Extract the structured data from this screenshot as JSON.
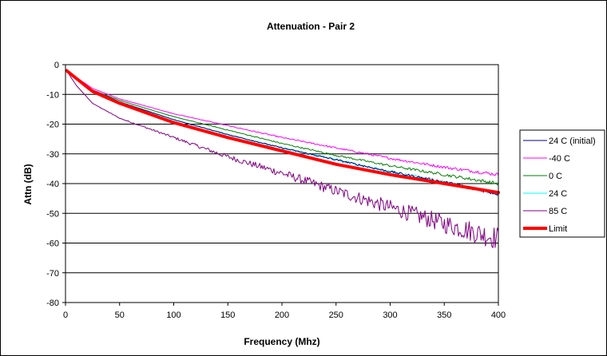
{
  "chart_data": {
    "type": "line",
    "title": "Attenuation - Pair 2",
    "xlabel": "Frequency (Mhz)",
    "ylabel": "Attn (dB)",
    "xlim": [
      0,
      400
    ],
    "ylim": [
      -80,
      0
    ],
    "x_ticks": [
      0,
      50,
      100,
      150,
      200,
      250,
      300,
      350,
      400
    ],
    "y_ticks": [
      0,
      -10,
      -20,
      -30,
      -40,
      -50,
      -60,
      -70,
      -80
    ],
    "grid": "horizontal",
    "legend_position": "right",
    "series": [
      {
        "name": "24 C (initial)",
        "color": "#000080",
        "width": 1,
        "noise": 0.6,
        "x": [
          1,
          25,
          50,
          100,
          150,
          200,
          250,
          300,
          350,
          400
        ],
        "y": [
          -2,
          -8.5,
          -12.5,
          -18.5,
          -23.5,
          -28,
          -32,
          -36,
          -39.5,
          -43.5
        ]
      },
      {
        "name": "-40 C",
        "color": "#ff00ff",
        "width": 1,
        "noise": 0.6,
        "x": [
          1,
          25,
          50,
          100,
          150,
          200,
          250,
          300,
          350,
          400
        ],
        "y": [
          -2,
          -8,
          -11.5,
          -16.5,
          -20.5,
          -24.5,
          -28,
          -31.5,
          -34.5,
          -37
        ]
      },
      {
        "name": "0 C",
        "color": "#008000",
        "width": 1,
        "noise": 0.6,
        "x": [
          1,
          25,
          50,
          100,
          150,
          200,
          250,
          300,
          350,
          400
        ],
        "y": [
          -2,
          -8.5,
          -12,
          -17.5,
          -22,
          -26.5,
          -30.5,
          -34,
          -37,
          -40
        ]
      },
      {
        "name": "24 C",
        "color": "#00ffff",
        "width": 1,
        "noise": 0.7,
        "x": [
          1,
          25,
          50,
          100,
          150,
          200,
          250,
          300,
          350,
          400
        ],
        "y": [
          -2,
          -8.5,
          -12.5,
          -18.5,
          -23.5,
          -28,
          -32,
          -36,
          -39.5,
          -43.5
        ]
      },
      {
        "name": "85 C",
        "color": "#800080",
        "width": 1,
        "noise": 4,
        "x": [
          1,
          10,
          25,
          50,
          100,
          150,
          200,
          250,
          300,
          350,
          400
        ],
        "y": [
          -2,
          -7,
          -13,
          -18,
          -24.5,
          -31,
          -36.5,
          -42.5,
          -48,
          -53.5,
          -58.5
        ]
      },
      {
        "name": "Limit",
        "color": "#ff0000",
        "width": 4,
        "noise": 0,
        "x": [
          1,
          25,
          50,
          100,
          150,
          200,
          250,
          300,
          350,
          400
        ],
        "y": [
          -2,
          -9,
          -13,
          -19.5,
          -24.5,
          -29,
          -33.5,
          -37,
          -40,
          -43
        ]
      }
    ]
  }
}
